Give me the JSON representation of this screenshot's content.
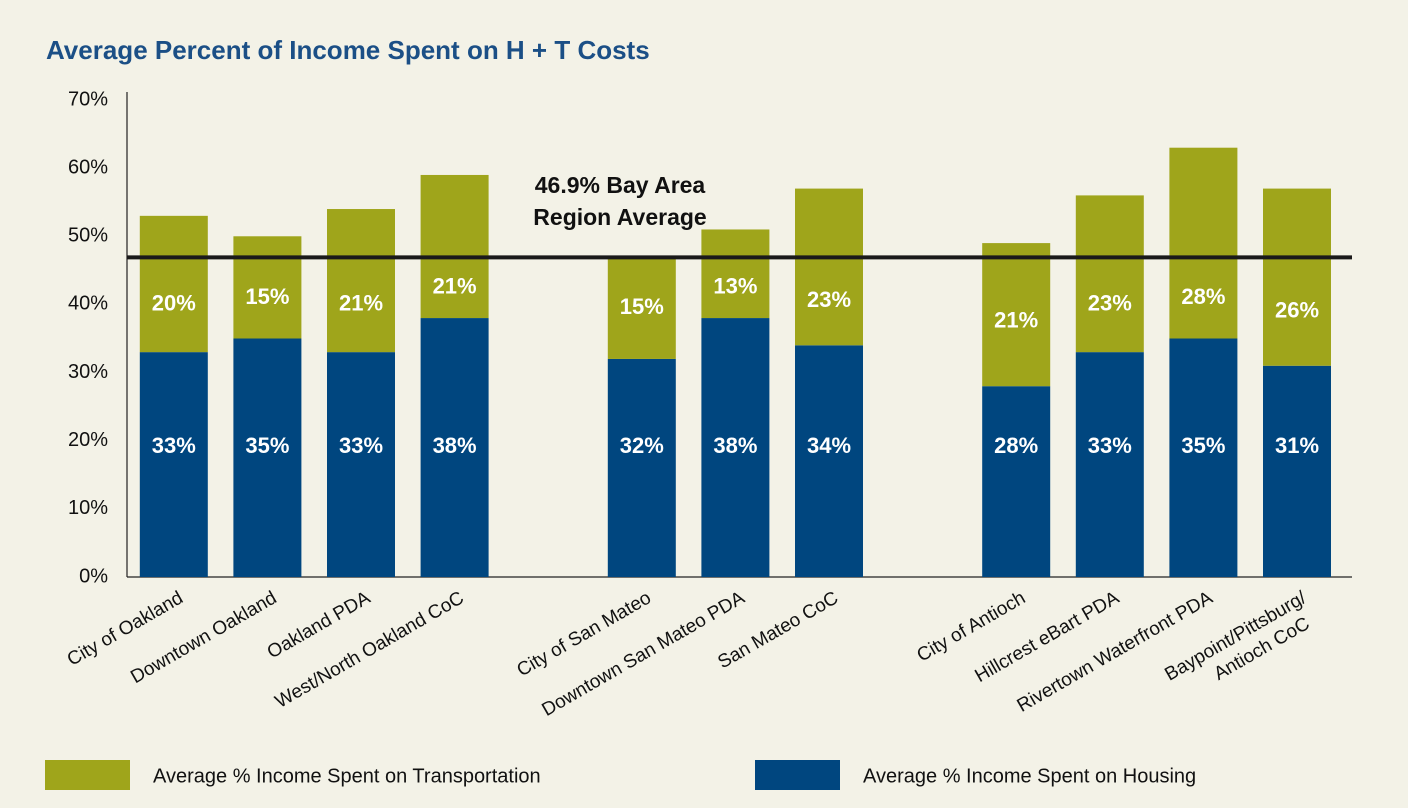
{
  "chart_data": {
    "type": "stacked-bar",
    "title": "Average Percent of Income Spent on H + T Costs",
    "categories": [
      "City of Oakland",
      "Downtown Oakland",
      "Oakland PDA",
      "West/North Oakland CoC",
      null,
      "City of San Mateo",
      "Downtown San Mateo PDA",
      "San Mateo CoC",
      null,
      "City of Antioch",
      "Hillcrest eBart PDA",
      "Rivertown Waterfront PDA",
      "Baypoint/Pittsburg/\nAntioch CoC"
    ],
    "series": [
      {
        "name": "Average % Income Spent on Transportation",
        "color": "#9fa51b",
        "values": [
          20,
          15,
          21,
          21,
          null,
          15,
          13,
          23,
          null,
          21,
          23,
          28,
          26
        ],
        "value_labels": [
          "20%",
          "15%",
          "21%",
          "21%",
          null,
          "15%",
          "13%",
          "23%",
          null,
          "21%",
          "23%",
          "28%",
          "26%"
        ]
      },
      {
        "name": "Average % Income Spent on Housing",
        "color": "#00467f",
        "values": [
          33,
          35,
          33,
          38,
          null,
          32,
          38,
          34,
          null,
          28,
          33,
          35,
          31
        ],
        "value_labels": [
          "33%",
          "35%",
          "33%",
          "38%",
          null,
          "32%",
          "38%",
          "34%",
          null,
          "28%",
          "33%",
          "35%",
          "31%"
        ]
      }
    ],
    "ylim": [
      0,
      70
    ],
    "yticks": [
      {
        "value": 0,
        "label": "0%"
      },
      {
        "value": 10,
        "label": "10%"
      },
      {
        "value": 20,
        "label": "20%"
      },
      {
        "value": 30,
        "label": "30%"
      },
      {
        "value": 40,
        "label": "40%"
      },
      {
        "value": 50,
        "label": "50%"
      },
      {
        "value": 60,
        "label": "60%"
      },
      {
        "value": 70,
        "label": "70%"
      }
    ],
    "grid": false,
    "reference_line": {
      "value": 46.9,
      "lines": [
        "46.9% Bay Area",
        "Region Average"
      ]
    }
  }
}
